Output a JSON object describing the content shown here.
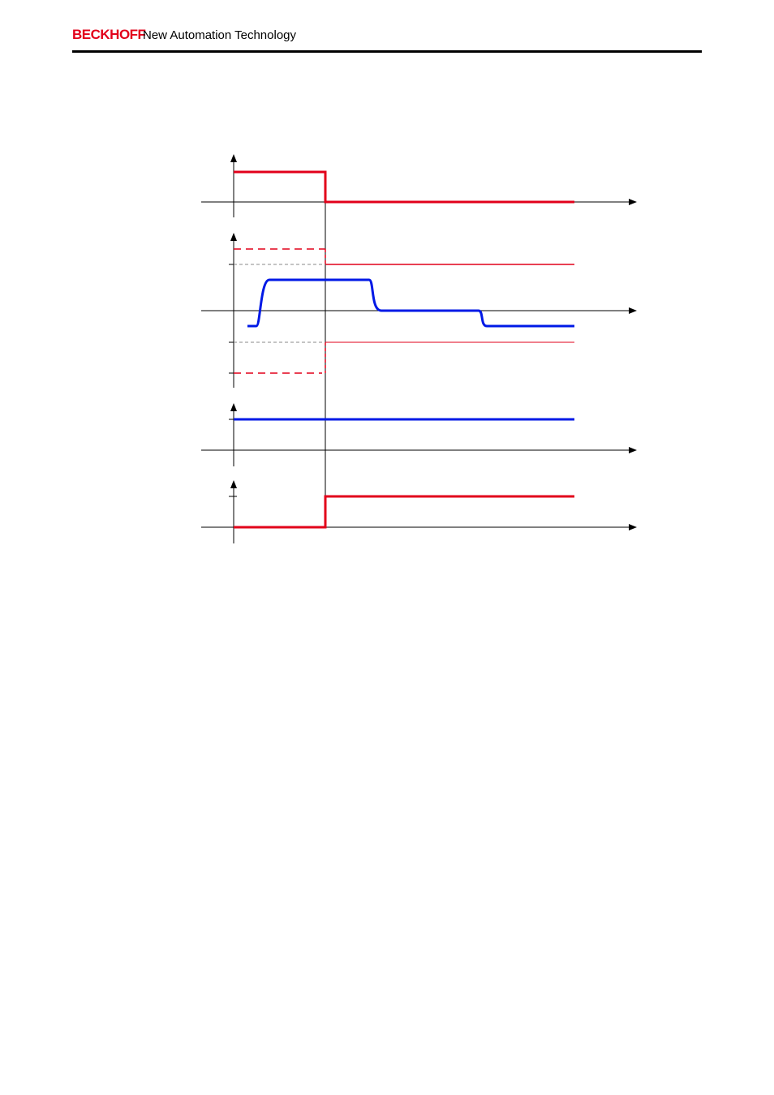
{
  "header": {
    "brand": "BECKHOFF",
    "tagline": "New Automation Technology"
  }
}
